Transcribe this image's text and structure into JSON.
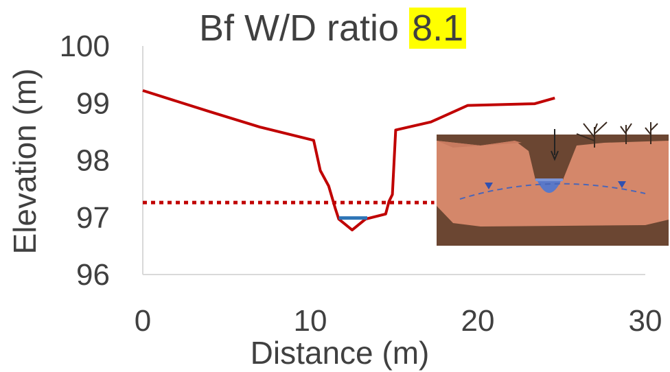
{
  "chart_data": {
    "type": "line",
    "title": "Bf W/D ratio",
    "title_value": "8.1",
    "xlabel": "Distance (m)",
    "ylabel": "Elevation (m)",
    "xlim": [
      0,
      30
    ],
    "ylim": [
      96,
      100
    ],
    "x_ticks": [
      "0",
      "10",
      "20",
      "30"
    ],
    "y_ticks": [
      "96",
      "97",
      "98",
      "99",
      "100"
    ],
    "grid": false,
    "series": [
      {
        "color": "#c00000",
        "style": "solid",
        "x": [
          0,
          4,
          7,
          10.2,
          10.6,
          11.1,
          11.5,
          11.7,
          12.5,
          13.3,
          14.5,
          14.7,
          14.9,
          15.1,
          17.2,
          19.4,
          23.4,
          24.6
        ],
        "y": [
          99.22,
          98.85,
          98.58,
          98.35,
          97.82,
          97.55,
          97.15,
          96.97,
          96.78,
          96.97,
          97.06,
          97.28,
          97.4,
          98.53,
          98.67,
          98.96,
          98.99,
          99.09
        ]
      },
      {
        "color": "#c00000",
        "style": "dotted",
        "x": [
          0,
          17.4
        ],
        "y": [
          97.26,
          97.26
        ]
      },
      {
        "color": "#2e75b6",
        "style": "solid",
        "x": [
          11.7,
          13.4
        ],
        "y": [
          96.99,
          96.99
        ]
      }
    ],
    "inset": {
      "description_icon": "channel-cross-section-illustration",
      "colors": {
        "soil": "#d4876a",
        "dark_soil": "#6b4632",
        "water": "#5a78c8"
      }
    }
  }
}
